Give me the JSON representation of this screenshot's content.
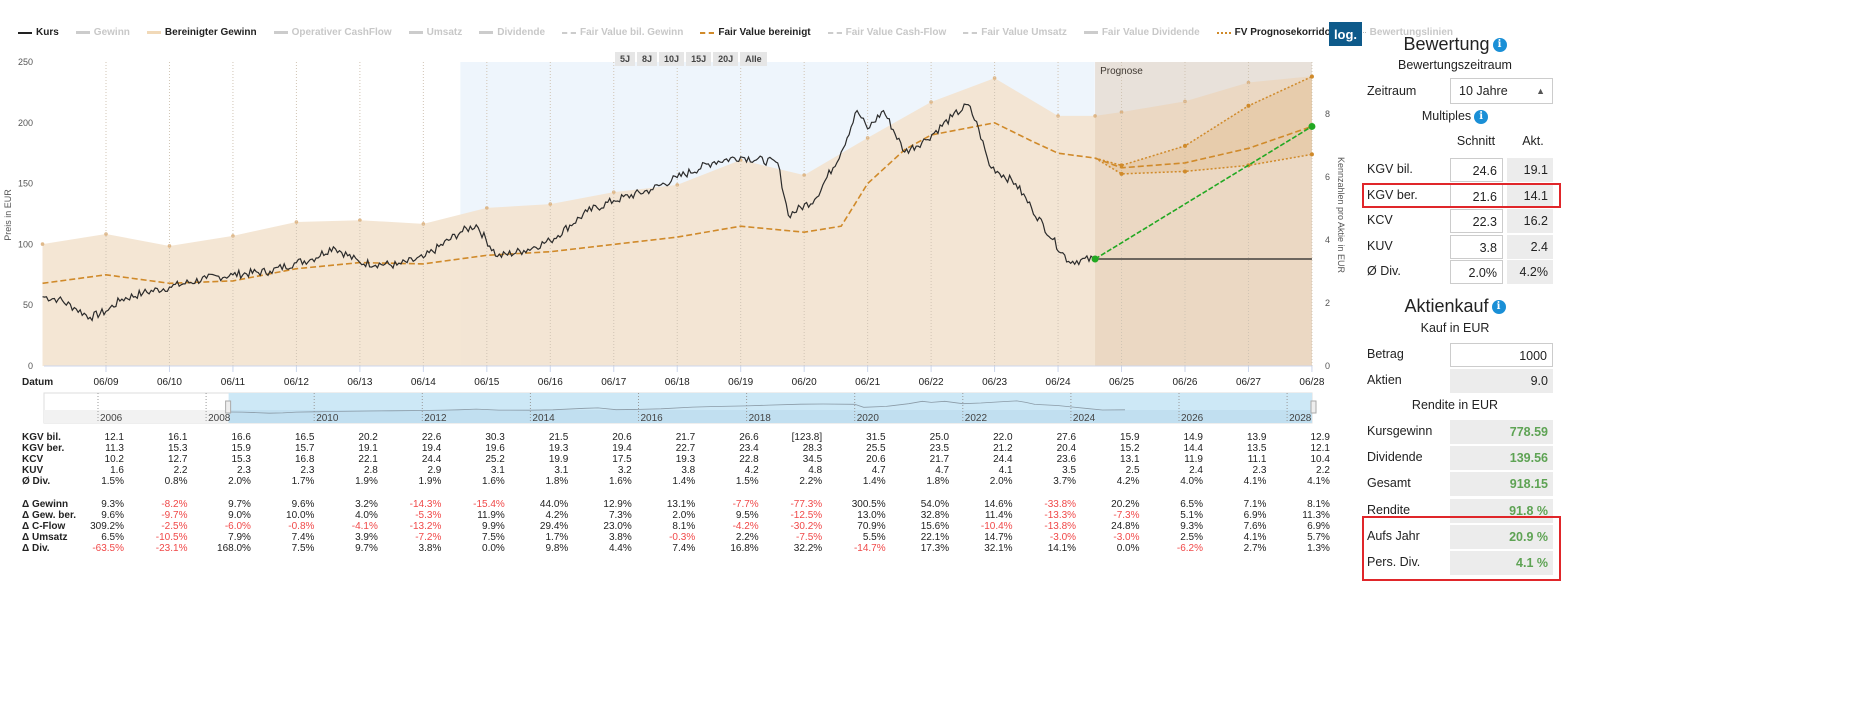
{
  "legend": [
    {
      "label": "Kurs",
      "active": true,
      "swatch": "kurs"
    },
    {
      "label": "Gewinn",
      "active": false,
      "swatch": "plain"
    },
    {
      "label": "Bereinigter Gewinn",
      "active": true,
      "swatch": "light"
    },
    {
      "label": "Operativer CashFlow",
      "active": false,
      "swatch": "plain"
    },
    {
      "label": "Umsatz",
      "active": false,
      "swatch": "plain"
    },
    {
      "label": "Dividende",
      "active": false,
      "swatch": "plain"
    },
    {
      "label": "Fair Value bil. Gewinn",
      "active": false,
      "swatch": "grey-d"
    },
    {
      "label": "Fair Value bereinigt",
      "active": true,
      "swatch": "dash"
    },
    {
      "label": "Fair Value Cash-Flow",
      "active": false,
      "swatch": "grey-d"
    },
    {
      "label": "Fair Value Umsatz",
      "active": false,
      "swatch": "grey-d"
    },
    {
      "label": "Fair Value Dividende",
      "active": false,
      "swatch": "plain"
    },
    {
      "label": "FV Prognosekorridor",
      "active": true,
      "swatch": "dot"
    },
    {
      "label": "Bewertungslinien",
      "active": false,
      "swatch": "grey-dot"
    }
  ],
  "log_button": "log.",
  "range_buttons": [
    "5J",
    "8J",
    "10J",
    "15J",
    "20J",
    "Alle"
  ],
  "chart_data": {
    "type": "line",
    "ylabel_left": "Preis in EUR",
    "ylabel_right": "Kennzahlen pro Aktie in EUR",
    "xlabel": "Datum",
    "ylim_left": [
      0,
      250
    ],
    "yticks_left": [
      "0",
      "50",
      "100",
      "150",
      "200",
      "250"
    ],
    "ylim_right": [
      0,
      9.65
    ],
    "yticks_right": [
      "0",
      "2",
      "4",
      "6",
      "8"
    ],
    "xticks": [
      "06/09",
      "06/10",
      "06/11",
      "06/12",
      "06/13",
      "06/14",
      "06/15",
      "06/16",
      "06/17",
      "06/18",
      "06/19",
      "06/20",
      "06/21",
      "06/22",
      "06/23",
      "06/24",
      "06/25",
      "06/26",
      "06/27",
      "06/28"
    ],
    "forecast_label": "Prognose",
    "forecast_start": "01/25",
    "highlight_range": [
      "01/15",
      "12/24"
    ],
    "colors": {
      "kurs": "#2b2b2b",
      "fair_value": "#d08a2a",
      "gewinn_area": "#f3e3cf",
      "forecast_bg": "#efefef",
      "highlight": "#eef5fc",
      "target": "#22a822"
    },
    "series": [
      {
        "name": "Kurs",
        "axis": "left",
        "points": [
          [
            "06/08",
            57
          ],
          [
            "09/08",
            55
          ],
          [
            "12/08",
            48
          ],
          [
            "03/09",
            40
          ],
          [
            "06/09",
            45
          ],
          [
            "09/09",
            55
          ],
          [
            "01/10",
            60
          ],
          [
            "06/10",
            65
          ],
          [
            "01/11",
            72
          ],
          [
            "06/11",
            75
          ],
          [
            "01/12",
            78
          ],
          [
            "06/12",
            85
          ],
          [
            "09/12",
            88
          ],
          [
            "01/13",
            98
          ],
          [
            "06/13",
            85
          ],
          [
            "01/14",
            83
          ],
          [
            "06/14",
            89
          ],
          [
            "01/15",
            110
          ],
          [
            "04/15",
            116
          ],
          [
            "08/15",
            90
          ],
          [
            "01/16",
            95
          ],
          [
            "06/16",
            103
          ],
          [
            "01/17",
            127
          ],
          [
            "06/17",
            136
          ],
          [
            "01/18",
            145
          ],
          [
            "06/18",
            155
          ],
          [
            "01/19",
            168
          ],
          [
            "06/19",
            172
          ],
          [
            "01/20",
            167
          ],
          [
            "03/20",
            124
          ],
          [
            "08/20",
            137
          ],
          [
            "01/21",
            176
          ],
          [
            "04/21",
            210
          ],
          [
            "06/21",
            195
          ],
          [
            "09/21",
            210
          ],
          [
            "01/22",
            176
          ],
          [
            "05/22",
            186
          ],
          [
            "10/22",
            205
          ],
          [
            "01/23",
            215
          ],
          [
            "03/23",
            195
          ],
          [
            "05/23",
            165
          ],
          [
            "10/23",
            150
          ],
          [
            "01/24",
            130
          ],
          [
            "05/24",
            104
          ],
          [
            "08/24",
            86
          ],
          [
            "01/25",
            88
          ]
        ]
      },
      {
        "name": "Fair Value bereinigt",
        "axis": "left",
        "points": [
          [
            "06/08",
            68
          ],
          [
            "06/09",
            75
          ],
          [
            "06/10",
            68
          ],
          [
            "06/11",
            70
          ],
          [
            "06/12",
            80
          ],
          [
            "06/13",
            85
          ],
          [
            "06/14",
            84
          ],
          [
            "06/15",
            91
          ],
          [
            "06/16",
            94
          ],
          [
            "06/17",
            100
          ],
          [
            "06/18",
            106
          ],
          [
            "06/19",
            115
          ],
          [
            "06/20",
            110
          ],
          [
            "01/21",
            115
          ],
          [
            "06/21",
            150
          ],
          [
            "01/22",
            178
          ],
          [
            "06/22",
            190
          ],
          [
            "06/23",
            200
          ],
          [
            "01/24",
            185
          ],
          [
            "06/24",
            175
          ],
          [
            "01/25",
            171
          ],
          [
            "06/25",
            163
          ],
          [
            "06/26",
            167
          ],
          [
            "06/27",
            179
          ],
          [
            "06/28",
            197
          ]
        ]
      },
      {
        "name": "FV Prognosekorridor oben",
        "axis": "left",
        "points": [
          [
            "01/25",
            171
          ],
          [
            "06/25",
            165
          ],
          [
            "06/26",
            181
          ],
          [
            "06/27",
            214
          ],
          [
            "06/28",
            238
          ]
        ]
      },
      {
        "name": "FV Prognosekorridor unten",
        "axis": "left",
        "points": [
          [
            "01/25",
            171
          ],
          [
            "06/25",
            158
          ],
          [
            "06/26",
            160
          ],
          [
            "06/27",
            165
          ],
          [
            "06/28",
            174
          ]
        ]
      },
      {
        "name": "Bereinigter Gewinn",
        "axis": "right",
        "points": [
          [
            "06/08",
            3.87
          ],
          [
            "06/09",
            4.19
          ],
          [
            "06/10",
            3.81
          ],
          [
            "06/11",
            4.13
          ],
          [
            "06/12",
            4.57
          ],
          [
            "06/13",
            4.63
          ],
          [
            "06/14",
            4.51
          ],
          [
            "06/15",
            5.02
          ],
          [
            "06/16",
            5.14
          ],
          [
            "06/17",
            5.52
          ],
          [
            "06/18",
            5.75
          ],
          [
            "06/19",
            6.54
          ],
          [
            "06/20",
            6.06
          ],
          [
            "06/21",
            7.24
          ],
          [
            "06/22",
            8.38
          ],
          [
            "06/23",
            9.14
          ],
          [
            "06/24",
            7.94
          ],
          [
            "01/25",
            7.94
          ],
          [
            "06/25",
            8.06
          ],
          [
            "06/26",
            8.4
          ],
          [
            "06/27",
            9.0
          ],
          [
            "06/28",
            9.2
          ]
        ]
      }
    ],
    "current_price_line": {
      "from": "01/25",
      "to": "06/28",
      "value": 88
    },
    "target_line": {
      "from": [
        "01/25",
        88
      ],
      "to": [
        "06/28",
        197
      ]
    },
    "navigator": {
      "year_labels": [
        "2006",
        "2008",
        "2010",
        "2012",
        "2014",
        "2016",
        "2018",
        "2020",
        "2022",
        "2024",
        "2026",
        "2028"
      ],
      "selected": [
        "06/08",
        "06/28"
      ]
    }
  },
  "table": {
    "rows": [
      {
        "label": "KGV bil.",
        "values": [
          "12.1",
          "16.1",
          "16.6",
          "16.5",
          "20.2",
          "22.6",
          "30.3",
          "21.5",
          "20.6",
          "21.7",
          "26.6",
          "[123.8]",
          "31.5",
          "25.0",
          "22.0",
          "27.6",
          "15.9",
          "14.9",
          "13.9",
          "12.9"
        ]
      },
      {
        "label": "KGV ber.",
        "values": [
          "11.3",
          "15.3",
          "15.9",
          "15.7",
          "19.1",
          "19.4",
          "19.6",
          "19.3",
          "19.4",
          "22.7",
          "23.4",
          "28.3",
          "25.5",
          "23.5",
          "21.2",
          "20.4",
          "15.2",
          "14.4",
          "13.5",
          "12.1"
        ]
      },
      {
        "label": "KCV",
        "values": [
          "10.2",
          "12.7",
          "15.3",
          "16.8",
          "22.1",
          "24.4",
          "25.2",
          "19.9",
          "17.5",
          "19.3",
          "22.8",
          "34.5",
          "20.6",
          "21.7",
          "24.4",
          "23.6",
          "13.1",
          "11.9",
          "11.1",
          "10.4"
        ]
      },
      {
        "label": "KUV",
        "values": [
          "1.6",
          "2.2",
          "2.3",
          "2.3",
          "2.8",
          "2.9",
          "3.1",
          "3.1",
          "3.2",
          "3.8",
          "4.2",
          "4.8",
          "4.7",
          "4.7",
          "4.1",
          "3.5",
          "2.5",
          "2.4",
          "2.3",
          "2.2"
        ]
      },
      {
        "label": "Ø Div.",
        "values": [
          "1.5%",
          "0.8%",
          "2.0%",
          "1.7%",
          "1.9%",
          "1.9%",
          "1.6%",
          "1.8%",
          "1.6%",
          "1.4%",
          "1.5%",
          "2.2%",
          "1.4%",
          "1.8%",
          "2.0%",
          "3.7%",
          "4.2%",
          "4.0%",
          "4.1%",
          "4.1%"
        ]
      },
      {
        "label": "Δ Gewinn",
        "values": [
          "9.3%",
          "-8.2%",
          "9.7%",
          "9.6%",
          "3.2%",
          "-14.3%",
          "-15.4%",
          "44.0%",
          "12.9%",
          "13.1%",
          "-7.7%",
          "-77.3%",
          "300.5%",
          "54.0%",
          "14.6%",
          "-33.8%",
          "20.2%",
          "6.5%",
          "7.1%",
          "8.1%"
        ]
      },
      {
        "label": "Δ Gew. ber.",
        "values": [
          "9.6%",
          "-9.7%",
          "9.0%",
          "10.0%",
          "4.0%",
          "-5.3%",
          "11.9%",
          "4.2%",
          "7.3%",
          "2.0%",
          "9.5%",
          "-12.5%",
          "13.0%",
          "32.8%",
          "11.4%",
          "-13.3%",
          "-7.3%",
          "5.1%",
          "6.9%",
          "11.3%"
        ]
      },
      {
        "label": "Δ C-Flow",
        "values": [
          "309.2%",
          "-2.5%",
          "-6.0%",
          "-0.8%",
          "-4.1%",
          "-13.2%",
          "9.9%",
          "29.4%",
          "23.0%",
          "8.1%",
          "-4.2%",
          "-30.2%",
          "70.9%",
          "15.6%",
          "-10.4%",
          "-13.8%",
          "24.8%",
          "9.3%",
          "7.6%",
          "6.9%"
        ]
      },
      {
        "label": "Δ Umsatz",
        "values": [
          "6.5%",
          "-10.5%",
          "7.9%",
          "7.4%",
          "3.9%",
          "-7.2%",
          "7.5%",
          "1.7%",
          "3.8%",
          "-0.3%",
          "2.2%",
          "-7.5%",
          "5.5%",
          "22.1%",
          "14.7%",
          "-3.0%",
          "-3.0%",
          "2.5%",
          "4.1%",
          "5.7%"
        ]
      },
      {
        "label": "Δ Div.",
        "values": [
          "-63.5%",
          "-23.1%",
          "168.0%",
          "7.5%",
          "9.7%",
          "3.8%",
          "0.0%",
          "9.8%",
          "4.4%",
          "7.4%",
          "16.8%",
          "32.2%",
          "-14.7%",
          "17.3%",
          "32.1%",
          "14.1%",
          "0.0%",
          "-6.2%",
          "2.7%",
          "1.3%"
        ]
      }
    ]
  },
  "panel": {
    "bewertung_title": "Bewertung",
    "zeitraum_heading": "Bewertungszeitraum",
    "zeitraum_label": "Zeitraum",
    "zeitraum_value": "10 Jahre",
    "multiples_heading": "Multiples",
    "col_schnitt": "Schnitt",
    "col_akt": "Akt.",
    "multiples": [
      {
        "label": "KGV bil.",
        "schnitt": "24.6",
        "akt": "19.1"
      },
      {
        "label": "KGV ber.",
        "schnitt": "21.6",
        "akt": "14.1",
        "highlighted": true
      },
      {
        "label": "KCV",
        "schnitt": "22.3",
        "akt": "16.2"
      },
      {
        "label": "KUV",
        "schnitt": "3.8",
        "akt": "2.4"
      },
      {
        "label": "Ø Div.",
        "schnitt": "2.0%",
        "akt": "4.2%"
      }
    ],
    "aktienkauf_title": "Aktienkauf",
    "kauf_heading": "Kauf in EUR",
    "betrag_label": "Betrag",
    "betrag_value": "1000",
    "aktien_label": "Aktien",
    "aktien_value": "9.0",
    "rendite_heading": "Rendite in EUR",
    "rendite": [
      {
        "label": "Kursgewinn",
        "value": "778.59"
      },
      {
        "label": "Dividende",
        "value": "139.56"
      },
      {
        "label": "Gesamt",
        "value": "918.15"
      },
      {
        "label": "Rendite",
        "value": "91.8 %"
      },
      {
        "label": "Aufs Jahr",
        "value": "20.9 %",
        "highlighted": true
      },
      {
        "label": "Pers. Div.",
        "value": "4.1 %",
        "highlighted": true
      }
    ],
    "info_icon": "i"
  }
}
